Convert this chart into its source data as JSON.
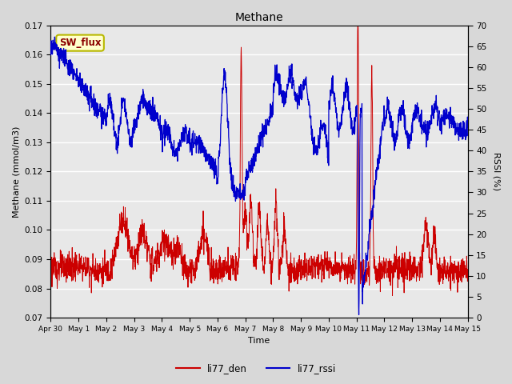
{
  "title": "Methane",
  "ylabel_left": "Methane (mmol/m3)",
  "ylabel_right": "RSSI (%)",
  "xlabel": "Time",
  "ylim_left": [
    0.07,
    0.17
  ],
  "ylim_right": [
    0,
    70
  ],
  "yticks_left": [
    0.07,
    0.08,
    0.09,
    0.1,
    0.11,
    0.12,
    0.13,
    0.14,
    0.15,
    0.16,
    0.17
  ],
  "yticks_right": [
    0,
    5,
    10,
    15,
    20,
    25,
    30,
    35,
    40,
    45,
    50,
    55,
    60,
    65,
    70
  ],
  "color_den": "#cc0000",
  "color_rssi": "#0000cc",
  "legend_labels": [
    "li77_den",
    "li77_rssi"
  ],
  "annotation_text": "SW_flux",
  "annotation_color": "#8b0000",
  "annotation_bg": "#ffffcc",
  "annotation_border": "#b8b800",
  "plot_bg": "#e8e8e8",
  "grid_color": "#ffffff",
  "xtick_labels": [
    "Apr 30",
    "May 1",
    "May 2",
    "May 3",
    "May 4",
    "May 5",
    "May 6",
    "May 7",
    "May 8",
    "May 9",
    "May 10",
    "May 11",
    "May 12",
    "May 13",
    "May 14",
    "May 15"
  ],
  "n_points": 2000
}
